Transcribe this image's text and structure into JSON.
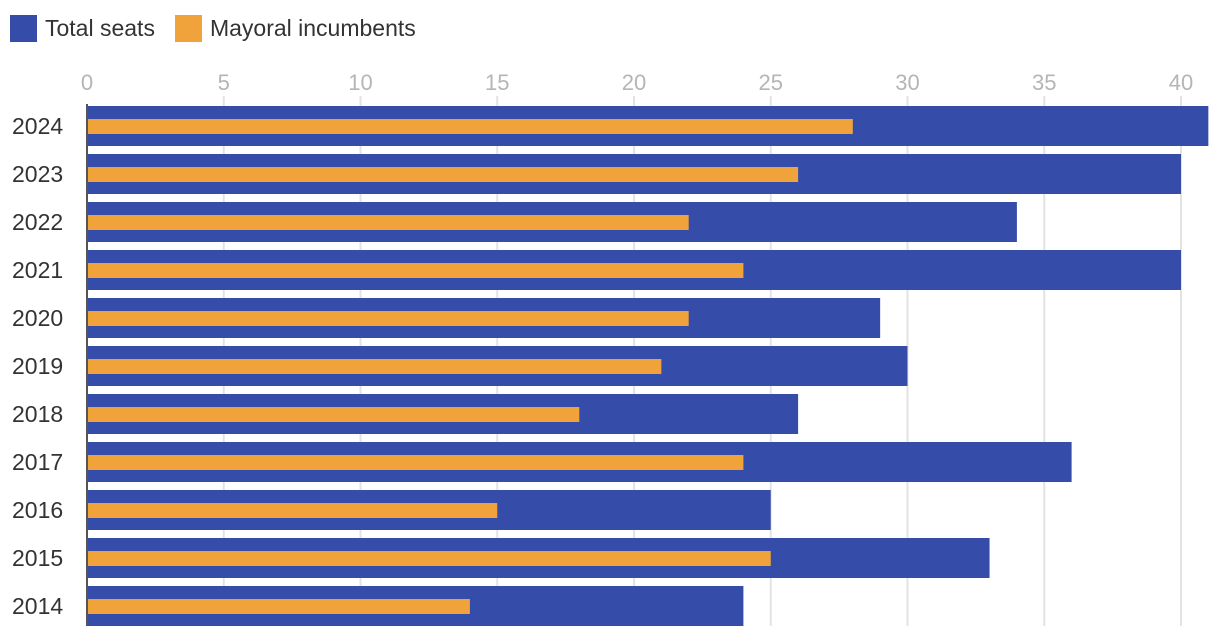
{
  "colors": {
    "total": "#354ca9",
    "incumbents": "#f0a33a",
    "grid": "#e3e3e3",
    "axis": "#555555"
  },
  "chart_data": {
    "type": "bar",
    "orientation": "horizontal",
    "categories": [
      "2024",
      "2023",
      "2022",
      "2021",
      "2020",
      "2019",
      "2018",
      "2017",
      "2016",
      "2015",
      "2014"
    ],
    "series": [
      {
        "name": "Total seats",
        "values": [
          41,
          40,
          34,
          40,
          29,
          30,
          26,
          36,
          25,
          33,
          24
        ]
      },
      {
        "name": "Mayoral incumbents",
        "values": [
          28,
          26,
          22,
          24,
          22,
          21,
          18,
          24,
          15,
          25,
          14
        ]
      }
    ],
    "xticks": [
      "0",
      "5",
      "10",
      "15",
      "20",
      "25",
      "30",
      "35",
      "40"
    ],
    "xlim": [
      0,
      40
    ],
    "legend_position": "top-left",
    "grid": true,
    "xaxis_position": "top"
  }
}
